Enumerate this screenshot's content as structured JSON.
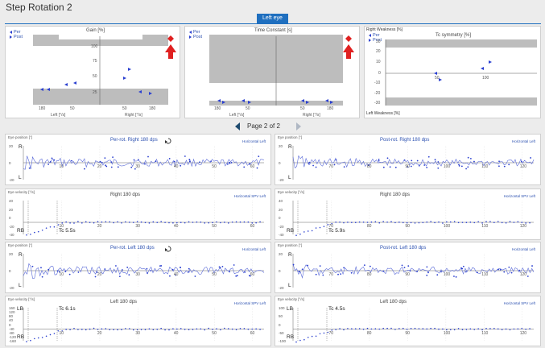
{
  "title": "Step Rotation 2",
  "eye_tab": "Left eye",
  "pager": {
    "label": "Page 2 of 2"
  },
  "legend": {
    "per": "Per",
    "post": "Post"
  },
  "gain": {
    "title": "Gain [%]",
    "x_left": "Left [°/s]",
    "x_right": "Right [°/s]",
    "yticks": [
      "100",
      "75",
      "50",
      "25"
    ],
    "xticks": [
      "180",
      "50",
      "50",
      "180"
    ]
  },
  "tc": {
    "title": "Time Constant [s]",
    "x_left": "Left [°/s]",
    "x_right": "Right [°/s]",
    "xticks": [
      "180",
      "50",
      "50",
      "180"
    ]
  },
  "sym": {
    "title": "Tc symmetry [%]",
    "top_label": "Right Weakness [%]",
    "bottom_label": "Left Weakness [%]",
    "yticks": [
      "30",
      "20",
      "10",
      "0",
      "-10",
      "-20",
      "-30"
    ],
    "xticks": [
      "50",
      "100"
    ]
  },
  "plots": [
    {
      "ylabel": "Eye position [°]",
      "title": "Per-rot. Right 180 dps",
      "corner": "Horizontal Left",
      "blue": true,
      "loop": true,
      "letters": [
        "R",
        "L"
      ],
      "type": "pos",
      "xticks": [
        "10",
        "20",
        "30",
        "40",
        "50",
        "60"
      ],
      "yticks": [
        "20",
        "0",
        "-20"
      ]
    },
    {
      "ylabel": "Eye position [°]",
      "title": "Post-rot. Right 180 dps",
      "corner": "Horizontal Left",
      "blue": true,
      "loop": false,
      "letters": [
        "R",
        "L"
      ],
      "type": "pos",
      "xticks": [
        "70",
        "80",
        "90",
        "100",
        "110",
        "120"
      ],
      "yticks": [
        "20",
        "0",
        "-20"
      ]
    },
    {
      "ylabel": "Eye velocity [°/s]",
      "title": "Right 180 dps",
      "corner": "Horizontal SPV Left",
      "blue": false,
      "loop": false,
      "letters": [
        "RB"
      ],
      "tc": "Tc 5.5s",
      "type": "vel",
      "xticks": [
        "10",
        "20",
        "30",
        "40",
        "50",
        "60"
      ],
      "yticks": [
        "40",
        "20",
        "0",
        "-20",
        "-40"
      ]
    },
    {
      "ylabel": "Eye velocity [°/s]",
      "title": "Right 180 dps",
      "corner": "Horizontal SPV Left",
      "blue": false,
      "loop": false,
      "letters": [
        "RB"
      ],
      "tc": "Tc 5.9s",
      "type": "vel",
      "xticks": [
        "70",
        "80",
        "90",
        "100",
        "110",
        "120"
      ],
      "yticks": [
        "40",
        "20",
        "0",
        "-20",
        "-40"
      ]
    },
    {
      "ylabel": "Eye position [°]",
      "title": "Per-rot. Left 180 dps",
      "corner": "Horizontal Left",
      "blue": true,
      "loop": true,
      "letters": [
        "R",
        "L"
      ],
      "type": "pos",
      "xticks": [
        "10",
        "20",
        "30",
        "40",
        "50",
        "60"
      ],
      "yticks": [
        "20",
        "0",
        "-20"
      ]
    },
    {
      "ylabel": "Eye position [°]",
      "title": "Post-rot. Left 180 dps",
      "corner": "Horizontal Left",
      "blue": true,
      "loop": false,
      "letters": [
        "R",
        "L"
      ],
      "type": "pos",
      "xticks": [
        "70",
        "80",
        "90",
        "100",
        "110",
        "120"
      ],
      "yticks": [
        "20",
        "0",
        "-20"
      ]
    },
    {
      "ylabel": "Eye velocity [°/s]",
      "title": "Left 180 dps",
      "corner": "Horizontal SPV Left",
      "blue": false,
      "loop": false,
      "letters": [
        "LB",
        "RB"
      ],
      "tc": "Tc 6.1s",
      "type": "vel",
      "xticks": [
        "10",
        "20",
        "30",
        "40",
        "50",
        "60"
      ],
      "yticks": [
        "160",
        "120",
        "80",
        "40",
        "0",
        "-40",
        "-80",
        "-120",
        "-160"
      ]
    },
    {
      "ylabel": "Eye velocity [°/s]",
      "title": "Left 180 dps",
      "corner": "Horizontal SPV Left",
      "blue": false,
      "loop": false,
      "letters": [
        "LB",
        "RB"
      ],
      "tc": "Tc 4.5s",
      "type": "vel",
      "xticks": [
        "70",
        "80",
        "90",
        "100",
        "110",
        "120"
      ],
      "yticks": [
        "100",
        "50",
        "0",
        "-50",
        "-100"
      ]
    }
  ],
  "colors": {
    "accent": "#1f6fbf",
    "marker": "#2a3fd0",
    "alert": "#e02020",
    "trace": "#5a6ad8"
  }
}
